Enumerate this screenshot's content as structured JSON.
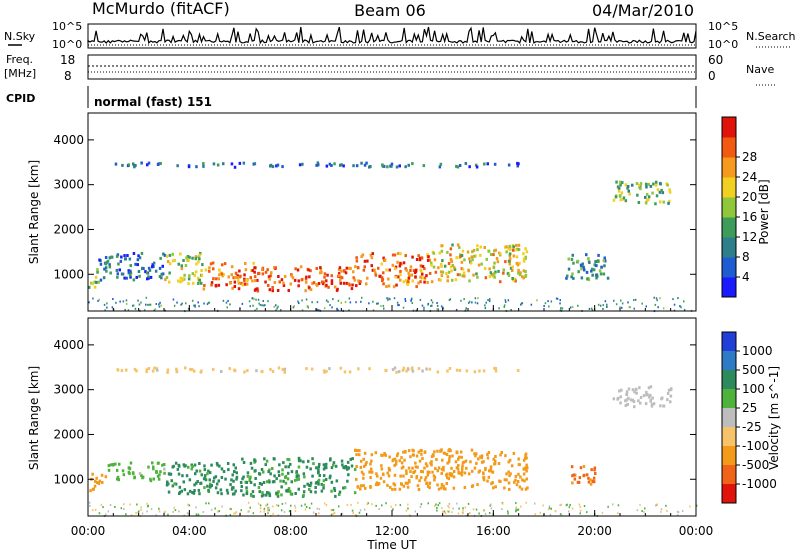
{
  "header": {
    "station": "McMurdo (fitACF)",
    "beam": "Beam 06",
    "date": "04/Mar/2010"
  },
  "noise_panel": {
    "left_label": "N.Sky",
    "right_label": "N.Search",
    "left_ticks": [
      "10^5",
      "10^0"
    ],
    "right_ticks": [
      "10^5",
      "10^0"
    ]
  },
  "freq_panel": {
    "left_label_line1": "Freq.",
    "left_label_line2": "[MHz]",
    "right_label": "Nave",
    "left_ticks": [
      "18",
      "8"
    ],
    "right_ticks": [
      "60",
      "0"
    ]
  },
  "cpid_panel": {
    "label": "CPID",
    "program": "normal (fast) 151"
  },
  "axes": {
    "ylabel": "Slant Range [km]",
    "xlabel": "Time UT",
    "x_ticks": [
      "00:00",
      "04:00",
      "08:00",
      "12:00",
      "16:00",
      "20:00",
      "00:00"
    ],
    "y_ticks": [
      "1000",
      "2000",
      "3000",
      "4000"
    ]
  },
  "chart_data": [
    {
      "type": "heatmap",
      "panel": "power",
      "xlabel": "Time UT",
      "ylabel": "Slant Range [km]",
      "xlim": [
        0,
        24
      ],
      "ylim": [
        180,
        4600
      ],
      "colorbar": {
        "label": "Power [dB]",
        "ticks": [
          "4",
          "8",
          "12",
          "16",
          "20",
          "24",
          "28"
        ],
        "range": [
          0,
          30
        ],
        "colors": [
          "#1a1aff",
          "#1f5bd1",
          "#2e7f8a",
          "#3c9c5a",
          "#8fc63a",
          "#f2d020",
          "#f59a1e",
          "#f25a12",
          "#e0140a"
        ]
      },
      "regions": [
        {
          "t0": 0.0,
          "t1": 0.4,
          "r0": 700,
          "r1": 1200,
          "value": 14
        },
        {
          "t0": 0.4,
          "t1": 1.2,
          "r0": 900,
          "r1": 1500,
          "value": 8
        },
        {
          "t0": 1.2,
          "t1": 3.0,
          "r0": 900,
          "r1": 1500,
          "value": 6
        },
        {
          "t0": 3.0,
          "t1": 4.5,
          "r0": 800,
          "r1": 1500,
          "value": 16
        },
        {
          "t0": 4.5,
          "t1": 6.5,
          "r0": 700,
          "r1": 1300,
          "value": 24
        },
        {
          "t0": 6.5,
          "t1": 10.5,
          "r0": 650,
          "r1": 1200,
          "value": 26
        },
        {
          "t0": 10.5,
          "t1": 13.5,
          "r0": 750,
          "r1": 1500,
          "value": 24
        },
        {
          "t0": 13.5,
          "t1": 17.3,
          "r0": 850,
          "r1": 1700,
          "value": 18
        },
        {
          "t0": 18.8,
          "t1": 20.5,
          "r0": 900,
          "r1": 1500,
          "value": 10
        },
        {
          "t0": 20.6,
          "t1": 23.0,
          "r0": 2600,
          "r1": 3100,
          "value": 14
        },
        {
          "t0": 1.0,
          "t1": 17.0,
          "r0": 3420,
          "r1": 3520,
          "value": 6
        }
      ]
    },
    {
      "type": "heatmap",
      "panel": "velocity",
      "xlabel": "Time UT",
      "ylabel": "Slant Range [km]",
      "xlim": [
        0,
        24
      ],
      "ylim": [
        180,
        4600
      ],
      "colorbar": {
        "label": "Velocity [m s^-1]",
        "ticks": [
          "1000",
          "500",
          "100",
          "25",
          "-25",
          "-100",
          "-500",
          "-1000"
        ],
        "colors": [
          "#1f3fd6",
          "#2f7ac6",
          "#2d8a5c",
          "#4fb23c",
          "#bdbdbd",
          "#f6c36a",
          "#f39a1a",
          "#f0641a",
          "#e0140a"
        ]
      },
      "regions": [
        {
          "t0": 0.0,
          "t1": 0.7,
          "r0": 750,
          "r1": 1150,
          "value": -300
        },
        {
          "t0": 0.7,
          "t1": 3.0,
          "r0": 1000,
          "r1": 1400,
          "value": 60
        },
        {
          "t0": 3.0,
          "t1": 6.0,
          "r0": 700,
          "r1": 1400,
          "value": 150
        },
        {
          "t0": 6.0,
          "t1": 10.5,
          "r0": 650,
          "r1": 1500,
          "value": 120
        },
        {
          "t0": 10.5,
          "t1": 17.3,
          "r0": 800,
          "r1": 1700,
          "value": -300
        },
        {
          "t0": 19.0,
          "t1": 20.0,
          "r0": 900,
          "r1": 1400,
          "value": -600
        },
        {
          "t0": 20.6,
          "t1": 23.0,
          "r0": 2650,
          "r1": 3100,
          "value": 0
        },
        {
          "t0": 1.0,
          "t1": 17.0,
          "r0": 3420,
          "r1": 3520,
          "value": -50
        }
      ]
    }
  ],
  "colors": {
    "frame": "#000000",
    "background": "#ffffff"
  }
}
